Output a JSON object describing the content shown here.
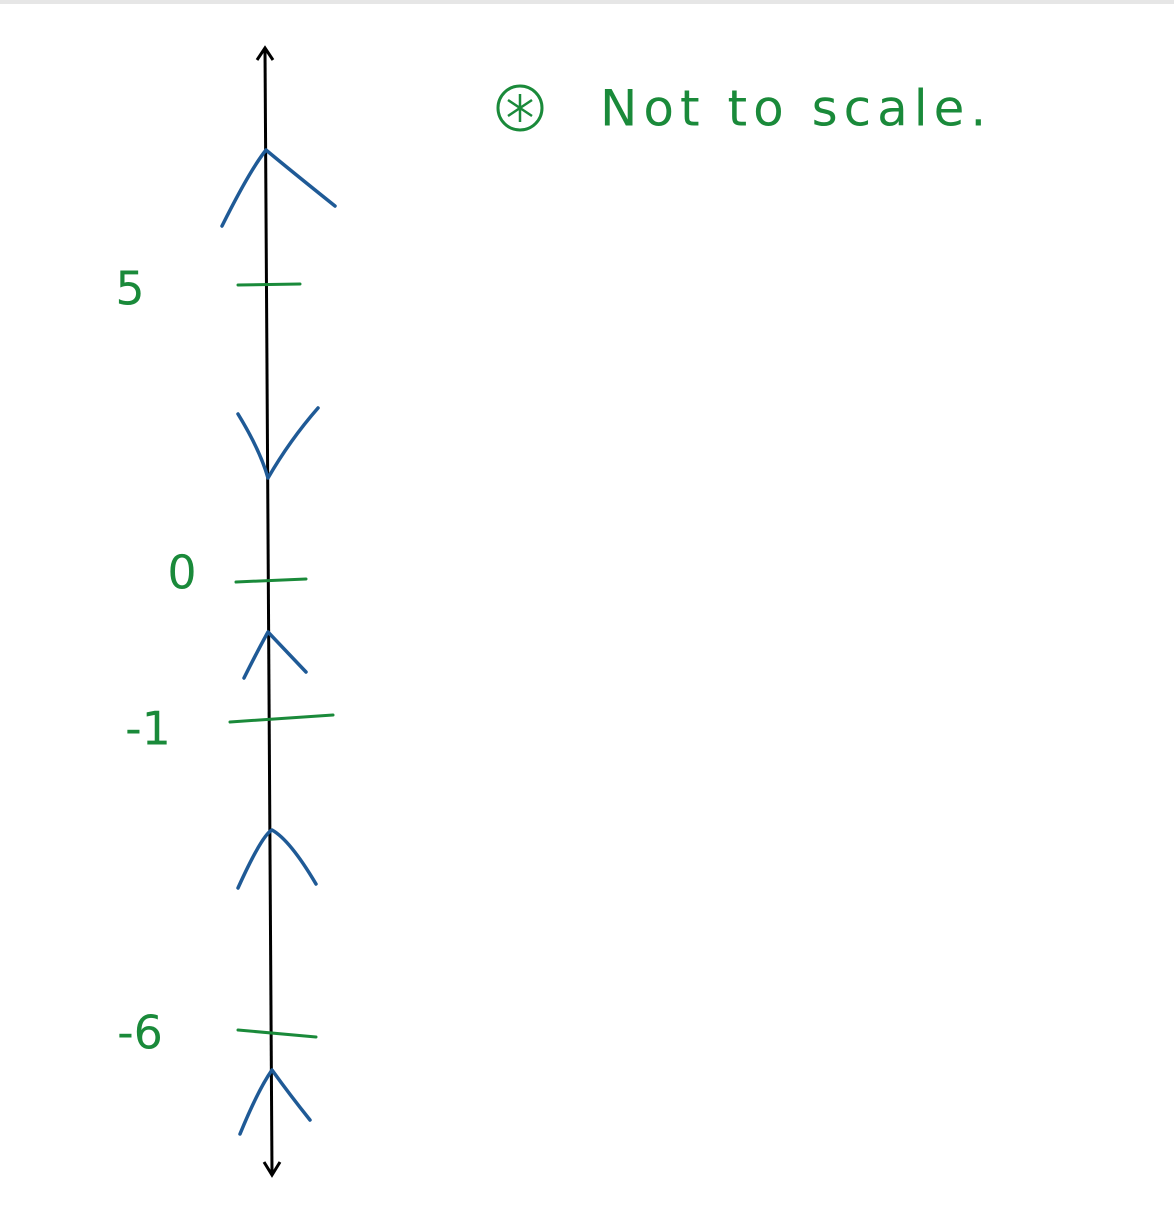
{
  "labels": [
    "5",
    "0",
    "-1",
    "-6"
  ],
  "note": "Not to scale."
}
